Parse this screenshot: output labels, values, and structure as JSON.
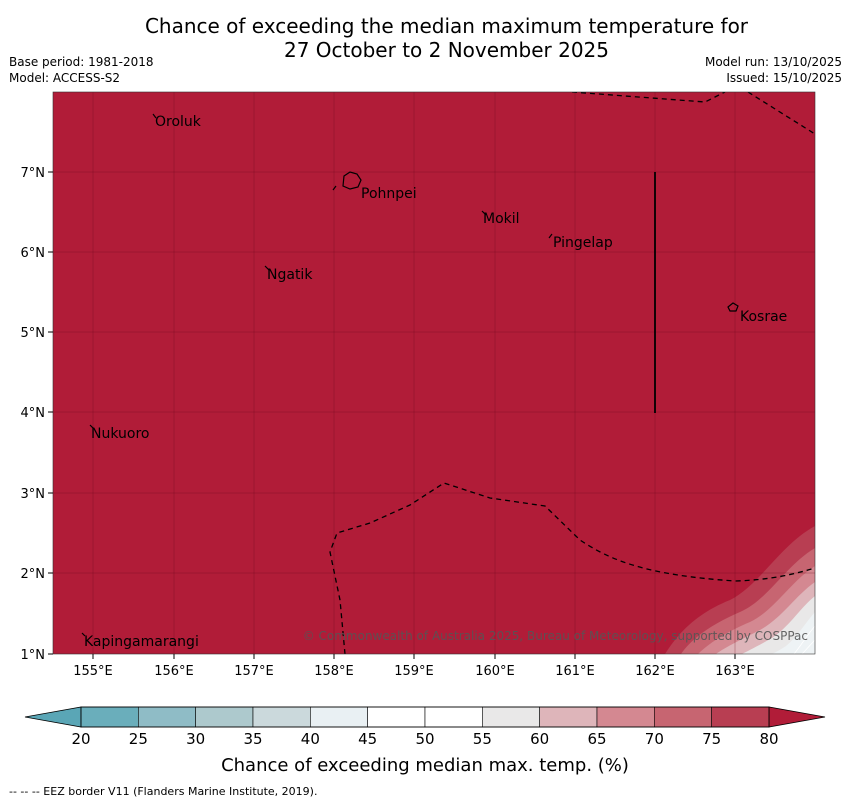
{
  "title": {
    "line1": "Chance of exceeding the median maximum temperature for",
    "line2": "27 October to 2 November 2025"
  },
  "meta": {
    "base_period": "Base period: 1981-2018",
    "model": "Model: ACCESS-S2",
    "model_run": "Model run: 13/10/2025",
    "issued": "Issued: 15/10/2025"
  },
  "map": {
    "fill_color": "#b11c38",
    "lat_labels": [
      "7°N",
      "6°N",
      "5°N",
      "4°N",
      "3°N",
      "2°N",
      "1°N"
    ],
    "lon_labels": [
      "155°E",
      "156°E",
      "157°E",
      "158°E",
      "159°E",
      "160°E",
      "161°E",
      "162°E",
      "163°E"
    ],
    "places": [
      "Oroluk",
      "Pohnpei",
      "Mokil",
      "Pingelap",
      "Ngatik",
      "Kosrae",
      "Nukuoro",
      "Kapingamarangi"
    ],
    "copyright": "© Commonwealth of Australia 2025, Bureau of Meteorology, supported by COSPPac"
  },
  "colorbar": {
    "ticks": [
      "20",
      "25",
      "30",
      "35",
      "40",
      "45",
      "50",
      "55",
      "60",
      "65",
      "70",
      "75",
      "80"
    ],
    "colors": [
      "#6aaebb",
      "#8fbcc6",
      "#adc9cd",
      "#cbd9dc",
      "#e9f0f3",
      "#ffffff",
      "#ffffff",
      "#e9e8e8",
      "#deb5ba",
      "#d48891",
      "#c76571",
      "#b83e52"
    ],
    "low_color": "#5aa6b6",
    "high_color": "#b11c38",
    "label": "Chance of exceeding median max. temp. (%)"
  },
  "footer": "--  --  -- EEZ border V11 (Flanders Marine Institute, 2019)."
}
